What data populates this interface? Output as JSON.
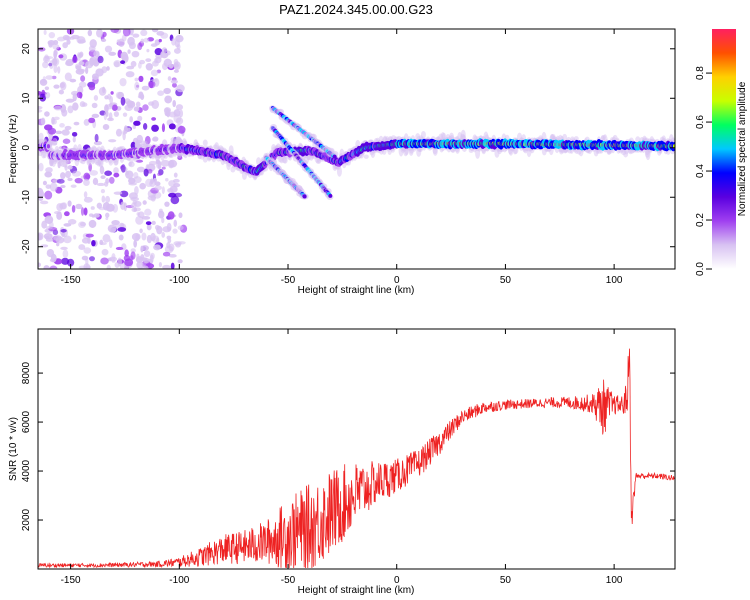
{
  "figure": {
    "title": "PAZ1.2024.345.00.00.G23"
  },
  "colors": {
    "snr_line": "#ee2222",
    "colormap": [
      "#ffffff",
      "#d8c2f2",
      "#a040f0",
      "#5a00e0",
      "#0000ff",
      "#00c8ff",
      "#00ff60",
      "#c8ff00",
      "#ffd000",
      "#ff5000",
      "#ff2060"
    ]
  },
  "chart_data": [
    {
      "type": "heatmap",
      "title": "",
      "xlabel": "Height of straight line (km)",
      "ylabel": "Frequency (Hz)",
      "xlim": [
        -165,
        128
      ],
      "ylim": [
        -24.5,
        24
      ],
      "xticks": [
        -150,
        -100,
        -50,
        0,
        50,
        100
      ],
      "yticks": [
        -20,
        -10,
        0,
        10,
        20
      ],
      "colorbar": {
        "label": "Normalized spectral amplitude",
        "range": [
          0,
          0.98
        ],
        "ticks": [
          0.0,
          0.2,
          0.4,
          0.6,
          0.8
        ]
      },
      "ridge": {
        "description_points_km_hz": [
          [
            -160,
            -1.5
          ],
          [
            -130,
            -1.5
          ],
          [
            -100,
            0
          ],
          [
            -80,
            -1.5
          ],
          [
            -65,
            -5
          ],
          [
            -55,
            -1
          ],
          [
            -40,
            -0.5
          ],
          [
            -27,
            -3
          ],
          [
            -15,
            0
          ],
          [
            0,
            0.8
          ],
          [
            50,
            0.8
          ],
          [
            100,
            0.5
          ],
          [
            128,
            0.3
          ]
        ],
        "strong_segment_km": [
          0,
          128
        ]
      },
      "branches": [
        {
          "x_km": [
            -57,
            -28
          ],
          "y_hz": [
            8,
            -2
          ]
        },
        {
          "x_km": [
            -57,
            -30
          ],
          "y_hz": [
            4,
            -10
          ]
        },
        {
          "x_km": [
            -60,
            -42
          ],
          "y_hz": [
            -2,
            -10
          ]
        }
      ],
      "noise_region_km": [
        -165,
        -98
      ]
    },
    {
      "type": "line",
      "title": "",
      "xlabel": "Height of straight line (km)",
      "ylabel": "SNR (10 * v/v)",
      "xlim": [
        -165,
        128
      ],
      "ylim": [
        0,
        9800
      ],
      "xticks": [
        -150,
        -100,
        -50,
        0,
        50,
        100
      ],
      "yticks": [
        2000,
        4000,
        6000,
        8000
      ],
      "series": [
        {
          "x": [
            -165,
            -140,
            -120,
            -110,
            -100,
            -90,
            -80,
            -70,
            -60,
            -50,
            -40,
            -30,
            -20,
            -10,
            0,
            10,
            20,
            30,
            40,
            50,
            60,
            70,
            80,
            90,
            95,
            100,
            104,
            106,
            107,
            108,
            110,
            115,
            120,
            128
          ],
          "mean": [
            150,
            150,
            180,
            200,
            280,
            500,
            800,
            900,
            1100,
            1400,
            1700,
            2300,
            3000,
            3500,
            3800,
            4300,
            5200,
            6200,
            6600,
            6700,
            6750,
            6800,
            6800,
            6750,
            6600,
            6700,
            6700,
            7000,
            9000,
            2000,
            3800,
            3800,
            3800,
            3700
          ],
          "spread": [
            80,
            80,
            100,
            120,
            200,
            400,
            600,
            700,
            900,
            1500,
            1800,
            1800,
            1400,
            900,
            700,
            600,
            500,
            300,
            250,
            200,
            200,
            200,
            250,
            400,
            1200,
            400,
            400,
            800,
            1000,
            600,
            150,
            120,
            120,
            120
          ]
        }
      ]
    }
  ]
}
